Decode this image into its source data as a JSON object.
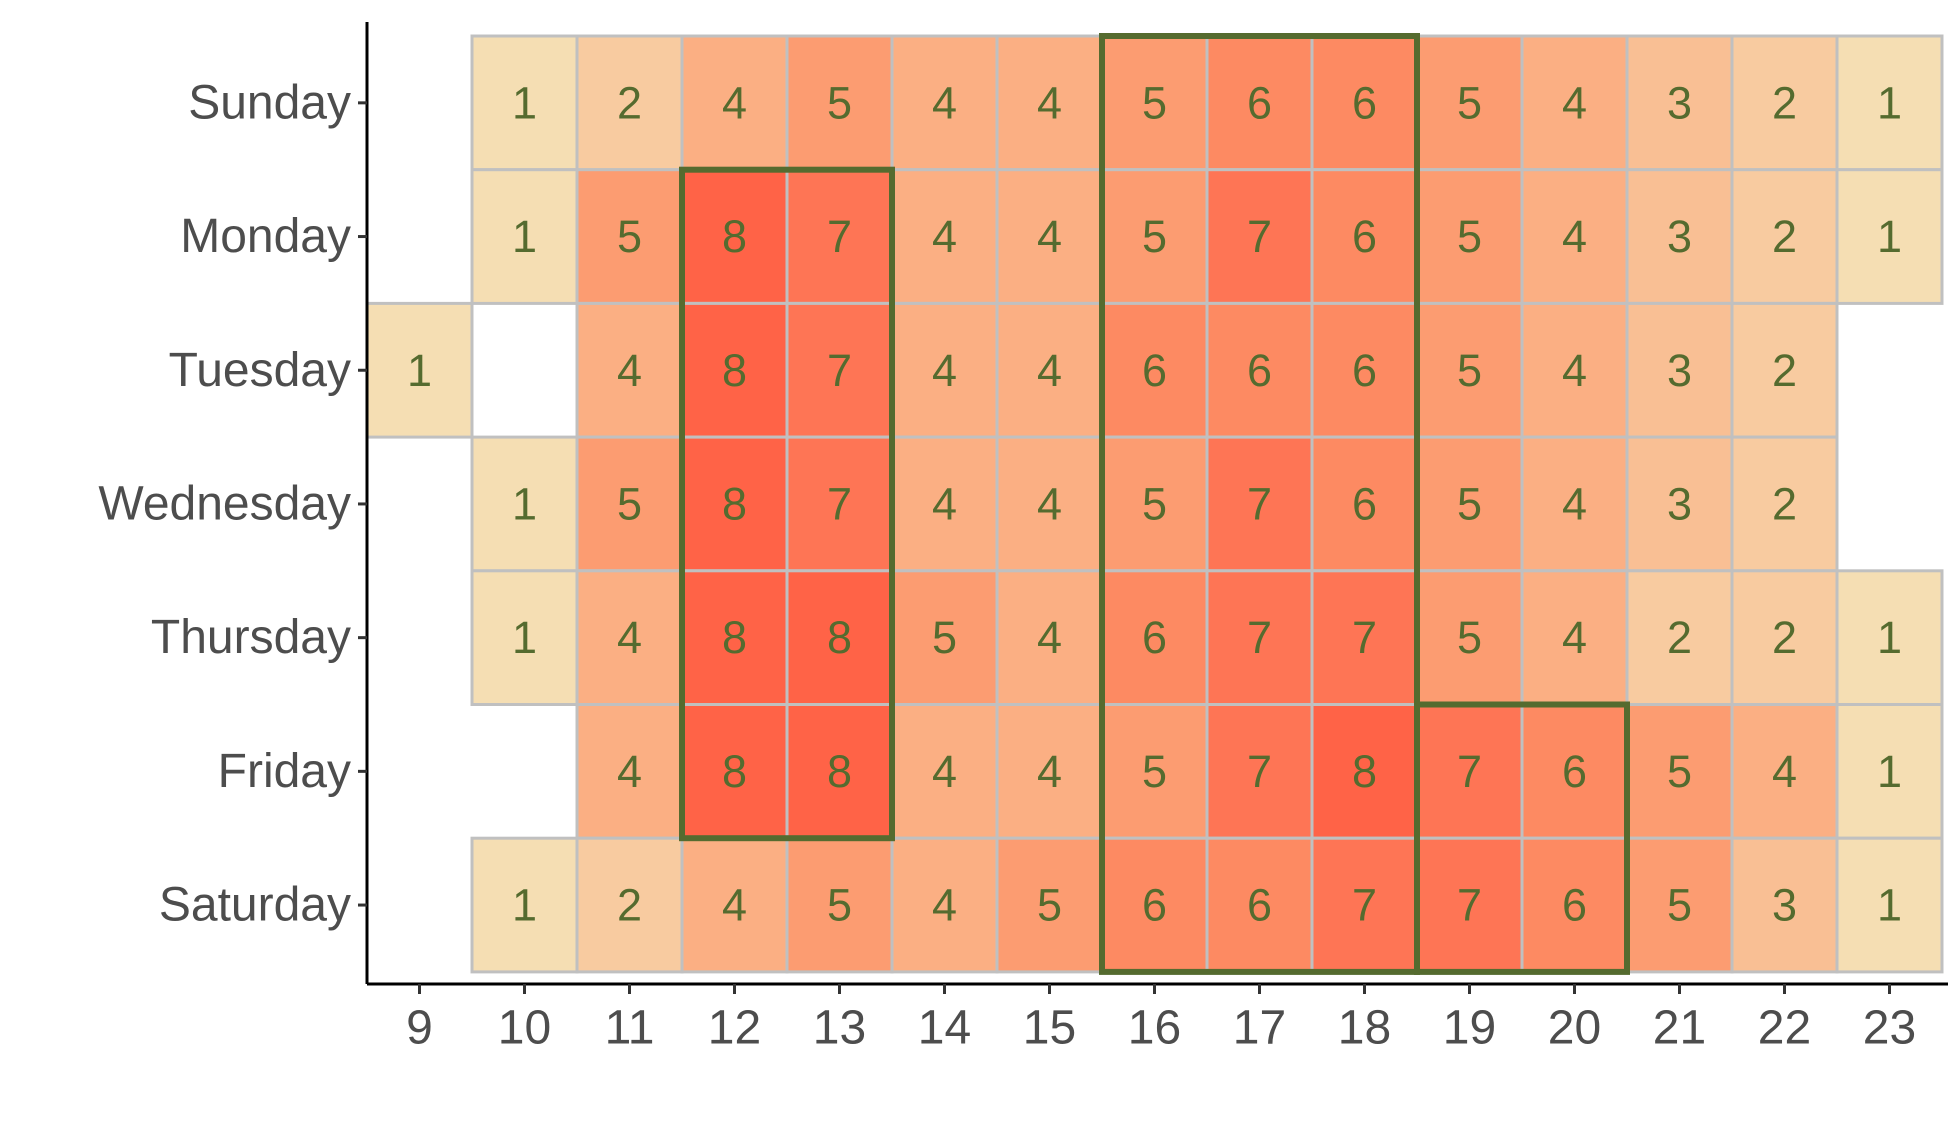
{
  "chart_data": {
    "type": "heatmap",
    "title": "",
    "xlabel": "",
    "ylabel": "",
    "x_categories": [
      9,
      10,
      11,
      12,
      13,
      14,
      15,
      16,
      17,
      18,
      19,
      20,
      21,
      22,
      23
    ],
    "y_categories": [
      "Sunday",
      "Monday",
      "Tuesday",
      "Wednesday",
      "Thursday",
      "Friday",
      "Saturday"
    ],
    "values": [
      [
        null,
        1,
        2,
        4,
        5,
        4,
        4,
        5,
        6,
        6,
        5,
        4,
        3,
        2,
        1
      ],
      [
        null,
        1,
        5,
        8,
        7,
        4,
        4,
        5,
        7,
        6,
        5,
        4,
        3,
        2,
        1
      ],
      [
        1,
        null,
        4,
        8,
        7,
        4,
        4,
        6,
        6,
        6,
        5,
        4,
        3,
        2,
        null
      ],
      [
        null,
        1,
        5,
        8,
        7,
        4,
        4,
        5,
        7,
        6,
        5,
        4,
        3,
        2,
        null
      ],
      [
        null,
        1,
        4,
        8,
        8,
        5,
        4,
        6,
        7,
        7,
        5,
        4,
        2,
        2,
        1
      ],
      [
        null,
        null,
        4,
        8,
        8,
        4,
        4,
        5,
        7,
        8,
        7,
        6,
        5,
        4,
        1
      ],
      [
        null,
        1,
        2,
        4,
        5,
        4,
        5,
        6,
        6,
        7,
        7,
        6,
        5,
        3,
        1
      ]
    ],
    "color_scale": {
      "1": "#f5deb3",
      "2": "#f8cba0",
      "3": "#f9bf94",
      "4": "#fbaf83",
      "5": "#fc9c71",
      "6": "#fd8a62",
      "7": "#fe7555",
      "8": "#ff6347"
    },
    "highlight_regions": [
      {
        "x_from": 12,
        "x_to": 13,
        "y_from": "Monday",
        "y_to": "Friday"
      },
      {
        "x_from": 16,
        "x_to": 18,
        "y_from": "Sunday",
        "y_to": "Saturday"
      },
      {
        "x_from": 19,
        "x_to": 20,
        "y_from": "Friday",
        "y_to": "Saturday"
      }
    ],
    "colors": {
      "cell_border": "#c0c0c0",
      "highlight_border": "#556b2f",
      "label_text": "#556b2f",
      "axis_text": "#4d4d4d",
      "axis_line": "#000000"
    },
    "legend": "none",
    "grid": false
  }
}
